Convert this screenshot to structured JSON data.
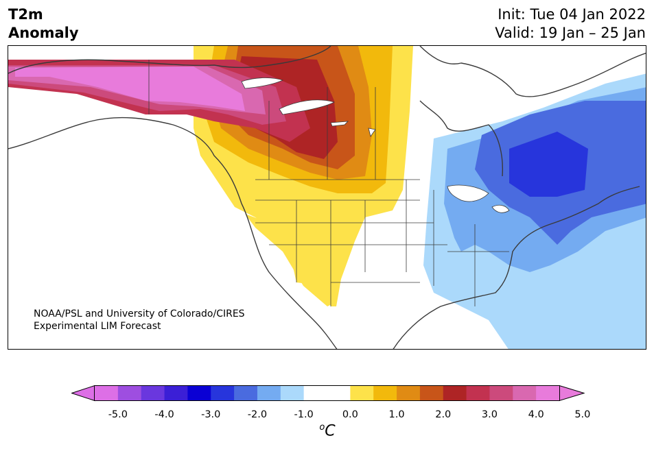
{
  "header": {
    "title_line1": "T2m",
    "title_line2": "Anomaly",
    "init": "Init: Tue 04 Jan 2022",
    "valid": "Valid: 19 Jan – 25 Jan"
  },
  "credit": {
    "line1": "NOAA/PSL and University of Colorado/CIRES",
    "line2": "Experimental LIM Forecast"
  },
  "colorbar": {
    "colors": [
      "#dd6fe6",
      "#9e4ee0",
      "#6a37de",
      "#3b1fd6",
      "#0a00d4",
      "#2735dc",
      "#4a6bdf",
      "#74abf1",
      "#abd9fb",
      "#ffffff",
      "#ffffff",
      "#fde24a",
      "#f2b90c",
      "#e08b14",
      "#c85519",
      "#ae2425",
      "#c23250",
      "#cc4a7c",
      "#d968b0",
      "#e87bdb"
    ],
    "tick_labels": [
      "-5.0",
      "-4.0",
      "-3.0",
      "-2.0",
      "-1.0",
      "0.0",
      "1.0",
      "2.0",
      "3.0",
      "4.0",
      "5.0"
    ],
    "unit_base": "C",
    "unit_sup": "o"
  }
}
